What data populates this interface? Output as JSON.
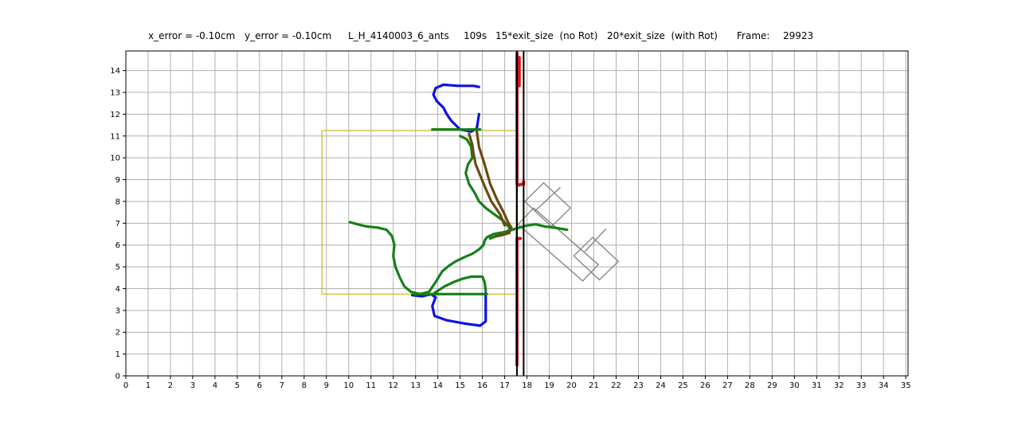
{
  "title_parts": {
    "x_error": "x_error = -0.10cm",
    "y_error": "y_error = -0.10cm",
    "experiment": "L_H_4140003_6_ants",
    "duration": "109s",
    "exit_no_rot": "15*exit_size  (no Rot)",
    "exit_rot": "20*exit_size  (with Rot)",
    "frame_label": "Frame:",
    "frame_value": "29923"
  },
  "colors": {
    "grid": "#b0b0b0",
    "axes": "#000000",
    "trajectory_blue": "#1010e0",
    "trajectory_green": "#168016",
    "trajectory_red": "#d01818",
    "trajectory_brown": "#6b4a10",
    "zone_box": "#c8b828",
    "load_shape": "#808080",
    "wall": "#000000"
  },
  "chart_data": {
    "type": "line",
    "xlim": [
      0,
      35.1
    ],
    "ylim": [
      0,
      14.9
    ],
    "x_ticks": [
      0,
      1,
      2,
      3,
      4,
      5,
      6,
      7,
      8,
      9,
      10,
      11,
      12,
      13,
      14,
      15,
      16,
      17,
      18,
      19,
      20,
      21,
      22,
      23,
      24,
      25,
      26,
      27,
      28,
      29,
      30,
      31,
      32,
      33,
      34,
      35
    ],
    "y_ticks": [
      0,
      1,
      2,
      3,
      4,
      5,
      6,
      7,
      8,
      9,
      10,
      11,
      12,
      13,
      14
    ],
    "grid": true,
    "xlabel": "",
    "ylabel": "",
    "walls": [
      {
        "x": 17.55,
        "y_range": [
          0,
          14.9
        ]
      },
      {
        "x": 17.85,
        "y_range": [
          0,
          14.9
        ]
      }
    ],
    "zone_box": {
      "x_range": [
        8.8,
        17.5
      ],
      "y_range": [
        3.75,
        11.25
      ]
    },
    "load_shape": {
      "body": [
        [
          17.6,
          6.95
        ],
        [
          18.3,
          7.7
        ],
        [
          21.2,
          5.1
        ],
        [
          20.5,
          4.35
        ]
      ],
      "cross_top": [
        [
          17.9,
          8.0
        ],
        [
          18.75,
          8.85
        ],
        [
          19.95,
          7.7
        ],
        [
          19.1,
          6.85
        ]
      ],
      "cross_bottom": [
        [
          20.1,
          5.5
        ],
        [
          20.95,
          6.35
        ],
        [
          22.1,
          5.25
        ],
        [
          21.25,
          4.4
        ]
      ],
      "divider_top": [
        [
          18.35,
          7.55
        ],
        [
          19.5,
          8.65
        ]
      ],
      "divider_bottom": [
        [
          20.6,
          5.7
        ],
        [
          21.55,
          6.75
        ]
      ]
    },
    "series": [
      {
        "color": "blue",
        "x": [
          15.85,
          15.6,
          14.9,
          14.25,
          13.9,
          13.8,
          13.95,
          14.25,
          14.4,
          14.6,
          15.0,
          15.5,
          15.75,
          15.85
        ],
        "y": [
          13.25,
          13.3,
          13.3,
          13.35,
          13.2,
          12.9,
          12.6,
          12.3,
          12.0,
          11.7,
          11.3,
          11.2,
          11.35,
          12.0
        ]
      },
      {
        "color": "blue",
        "x": [
          12.85,
          13.3,
          13.7,
          13.9,
          13.75,
          13.85,
          14.4,
          15.2,
          15.9,
          16.15,
          16.15
        ],
        "y": [
          3.7,
          3.65,
          3.75,
          3.6,
          3.2,
          2.75,
          2.55,
          2.4,
          2.3,
          2.5,
          3.8
        ]
      },
      {
        "color": "green",
        "x": [
          10.05,
          10.4,
          10.8,
          11.3,
          11.7,
          11.95,
          12.05,
          12.0,
          12.1,
          12.3,
          12.5,
          12.8,
          13.2,
          13.6,
          13.9,
          14.2,
          14.5,
          14.8,
          15.2,
          15.55,
          15.85,
          16.05,
          16.1,
          16.2,
          16.5,
          17.0,
          17.5,
          18.0,
          18.4,
          18.8,
          19.2,
          19.8
        ],
        "y": [
          7.05,
          6.95,
          6.85,
          6.8,
          6.7,
          6.4,
          6.0,
          5.5,
          5.0,
          4.5,
          4.1,
          3.85,
          3.75,
          3.85,
          4.3,
          4.8,
          5.05,
          5.25,
          5.45,
          5.6,
          5.8,
          6.0,
          6.2,
          6.35,
          6.5,
          6.6,
          6.75,
          6.9,
          6.95,
          6.85,
          6.8,
          6.7
        ]
      },
      {
        "color": "green",
        "x": [
          13.85,
          14.3,
          14.7,
          15.1,
          15.5,
          16.0,
          16.1,
          16.15
        ],
        "y": [
          3.8,
          4.1,
          4.3,
          4.45,
          4.55,
          4.55,
          4.3,
          3.9
        ]
      },
      {
        "color": "green",
        "x": [
          12.9,
          14.0,
          15.0,
          16.2
        ],
        "y": [
          3.75,
          3.75,
          3.75,
          3.75
        ]
      },
      {
        "color": "green",
        "x": [
          13.75,
          14.5,
          15.2,
          15.9
        ],
        "y": [
          11.3,
          11.3,
          11.3,
          11.3
        ]
      },
      {
        "color": "green",
        "x": [
          15.0,
          15.3,
          15.5,
          15.55,
          15.35,
          15.25,
          15.4,
          15.65,
          15.85,
          16.15,
          16.55,
          16.95,
          17.25,
          17.0,
          16.6,
          16.35
        ],
        "y": [
          11.0,
          10.85,
          10.5,
          10.0,
          9.7,
          9.3,
          8.8,
          8.4,
          8.0,
          7.7,
          7.4,
          7.1,
          6.75,
          6.5,
          6.4,
          6.3
        ]
      },
      {
        "color": "brown",
        "x": [
          15.4,
          15.55,
          15.6,
          15.7,
          15.9,
          16.1,
          16.4,
          16.8,
          17.0
        ],
        "y": [
          11.1,
          10.6,
          10.2,
          9.7,
          9.2,
          8.7,
          8.0,
          7.4,
          6.9
        ]
      },
      {
        "color": "brown",
        "x": [
          15.75,
          15.85,
          16.1,
          16.35,
          16.65,
          16.95,
          17.15,
          17.3,
          17.2,
          16.85,
          16.6
        ],
        "y": [
          11.2,
          10.5,
          9.7,
          8.8,
          8.1,
          7.5,
          7.05,
          6.8,
          6.55,
          6.45,
          6.4
        ]
      },
      {
        "color": "red",
        "x": [
          17.55,
          17.55,
          17.6,
          17.85,
          17.85
        ],
        "y": [
          14.8,
          8.8,
          8.75,
          8.8,
          8.9
        ]
      },
      {
        "color": "red",
        "x": [
          17.55,
          17.55,
          17.7
        ],
        "y": [
          0.5,
          6.3,
          6.3
        ]
      },
      {
        "color": "red",
        "x": [
          17.65,
          17.65
        ],
        "y": [
          14.6,
          13.3
        ]
      }
    ]
  }
}
